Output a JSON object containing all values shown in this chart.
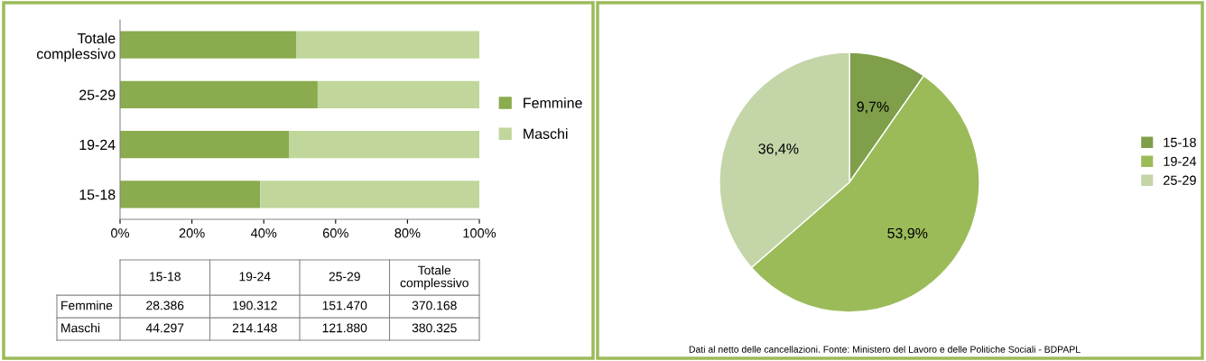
{
  "chart_data": [
    {
      "type": "bar",
      "orientation": "horizontal",
      "stacked": true,
      "categories": [
        "Totale complessivo",
        "25-29",
        "19-24",
        "15-18"
      ],
      "series": [
        {
          "name": "Femmine",
          "color": "#8aab4e",
          "values": [
            49,
            55,
            47,
            39
          ]
        },
        {
          "name": "Maschi",
          "color": "#c0d69b",
          "values": [
            51,
            45,
            53,
            61
          ]
        }
      ],
      "xlim": [
        0,
        100
      ],
      "xticks": [
        {
          "value": 0,
          "label": "0%"
        },
        {
          "value": 20,
          "label": "20%"
        },
        {
          "value": 40,
          "label": "40%"
        },
        {
          "value": 60,
          "label": "60%"
        },
        {
          "value": 80,
          "label": "80%"
        },
        {
          "value": 100,
          "label": "100%"
        }
      ],
      "legend": "right",
      "grid": false
    },
    {
      "type": "other",
      "categories": [
        "15-18",
        "19-24",
        "25-29",
        "Totale complessivo"
      ],
      "series": [
        {
          "name": "Femmine",
          "values": [
            28386,
            190312,
            151470,
            370168
          ],
          "value_labels": [
            "28.386",
            "190.312",
            "151.470",
            "370.168"
          ]
        },
        {
          "name": "Maschi",
          "values": [
            44297,
            214148,
            121880,
            380325
          ],
          "value_labels": [
            "44.297",
            "214.148",
            "121.880",
            "380.325"
          ]
        }
      ]
    },
    {
      "type": "pie",
      "categories": [
        "15-18",
        "19-24",
        "25-29"
      ],
      "values": [
        9.7,
        53.9,
        36.4
      ],
      "colors": [
        "#7f9f4a",
        "#9bbb59",
        "#c4d5a8"
      ],
      "value_labels": [
        "9,7%",
        "53,9%",
        "36,4%"
      ],
      "legend": "right",
      "annotations": [
        "Dati al netto delle cancellazioni. Fonte: Ministero del Lavoro e delle Politiche Sociali - BDPAPL"
      ]
    }
  ]
}
